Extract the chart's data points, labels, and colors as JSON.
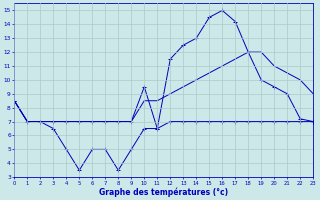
{
  "title": "Graphe des températures (°c)",
  "x_labels": [
    "0",
    "1",
    "2",
    "3",
    "4",
    "5",
    "6",
    "7",
    "8",
    "9",
    "10",
    "11",
    "12",
    "13",
    "14",
    "15",
    "16",
    "17",
    "18",
    "19",
    "20",
    "21",
    "22",
    "23"
  ],
  "xlim": [
    0,
    23
  ],
  "ylim": [
    3,
    15.5
  ],
  "yticks": [
    3,
    4,
    5,
    6,
    7,
    8,
    9,
    10,
    11,
    12,
    13,
    14,
    15
  ],
  "background_color": "#cce8e8",
  "grid_color": "#aacccc",
  "line_color": "#0000bb",
  "line1_min": {
    "x": [
      0,
      1,
      2,
      3,
      4,
      5,
      6,
      7,
      8,
      9,
      10,
      11,
      12,
      13,
      14,
      15,
      16,
      17,
      18,
      19,
      20,
      21,
      22,
      23
    ],
    "y": [
      8.5,
      7,
      7,
      6.5,
      5,
      3.5,
      5,
      5,
      3.5,
      5,
      6.5,
      6.5,
      7,
      7,
      7,
      7,
      7,
      7,
      7,
      7,
      7,
      7,
      7,
      7
    ]
  },
  "line2_avg": {
    "x": [
      0,
      1,
      2,
      3,
      4,
      5,
      6,
      7,
      8,
      9,
      10,
      11,
      12,
      13,
      14,
      15,
      16,
      17,
      18,
      19,
      20,
      21,
      22,
      23
    ],
    "y": [
      8.5,
      7,
      7,
      7,
      7,
      7,
      7,
      7,
      7,
      7,
      8.5,
      8.5,
      9,
      9.5,
      10,
      10.5,
      11,
      11.5,
      12,
      12,
      11,
      10.5,
      10,
      9
    ]
  },
  "line3_max": {
    "x": [
      0,
      1,
      2,
      3,
      4,
      5,
      6,
      7,
      8,
      9,
      10,
      11,
      12,
      13,
      14,
      15,
      16,
      17,
      18,
      19,
      20,
      21,
      22,
      23
    ],
    "y": [
      8.5,
      7,
      7,
      7,
      7,
      7,
      7,
      7,
      7,
      7,
      9.5,
      6.5,
      11.5,
      12.5,
      13,
      14.5,
      15,
      14.2,
      12,
      10,
      9.5,
      9,
      7.2,
      7
    ]
  }
}
